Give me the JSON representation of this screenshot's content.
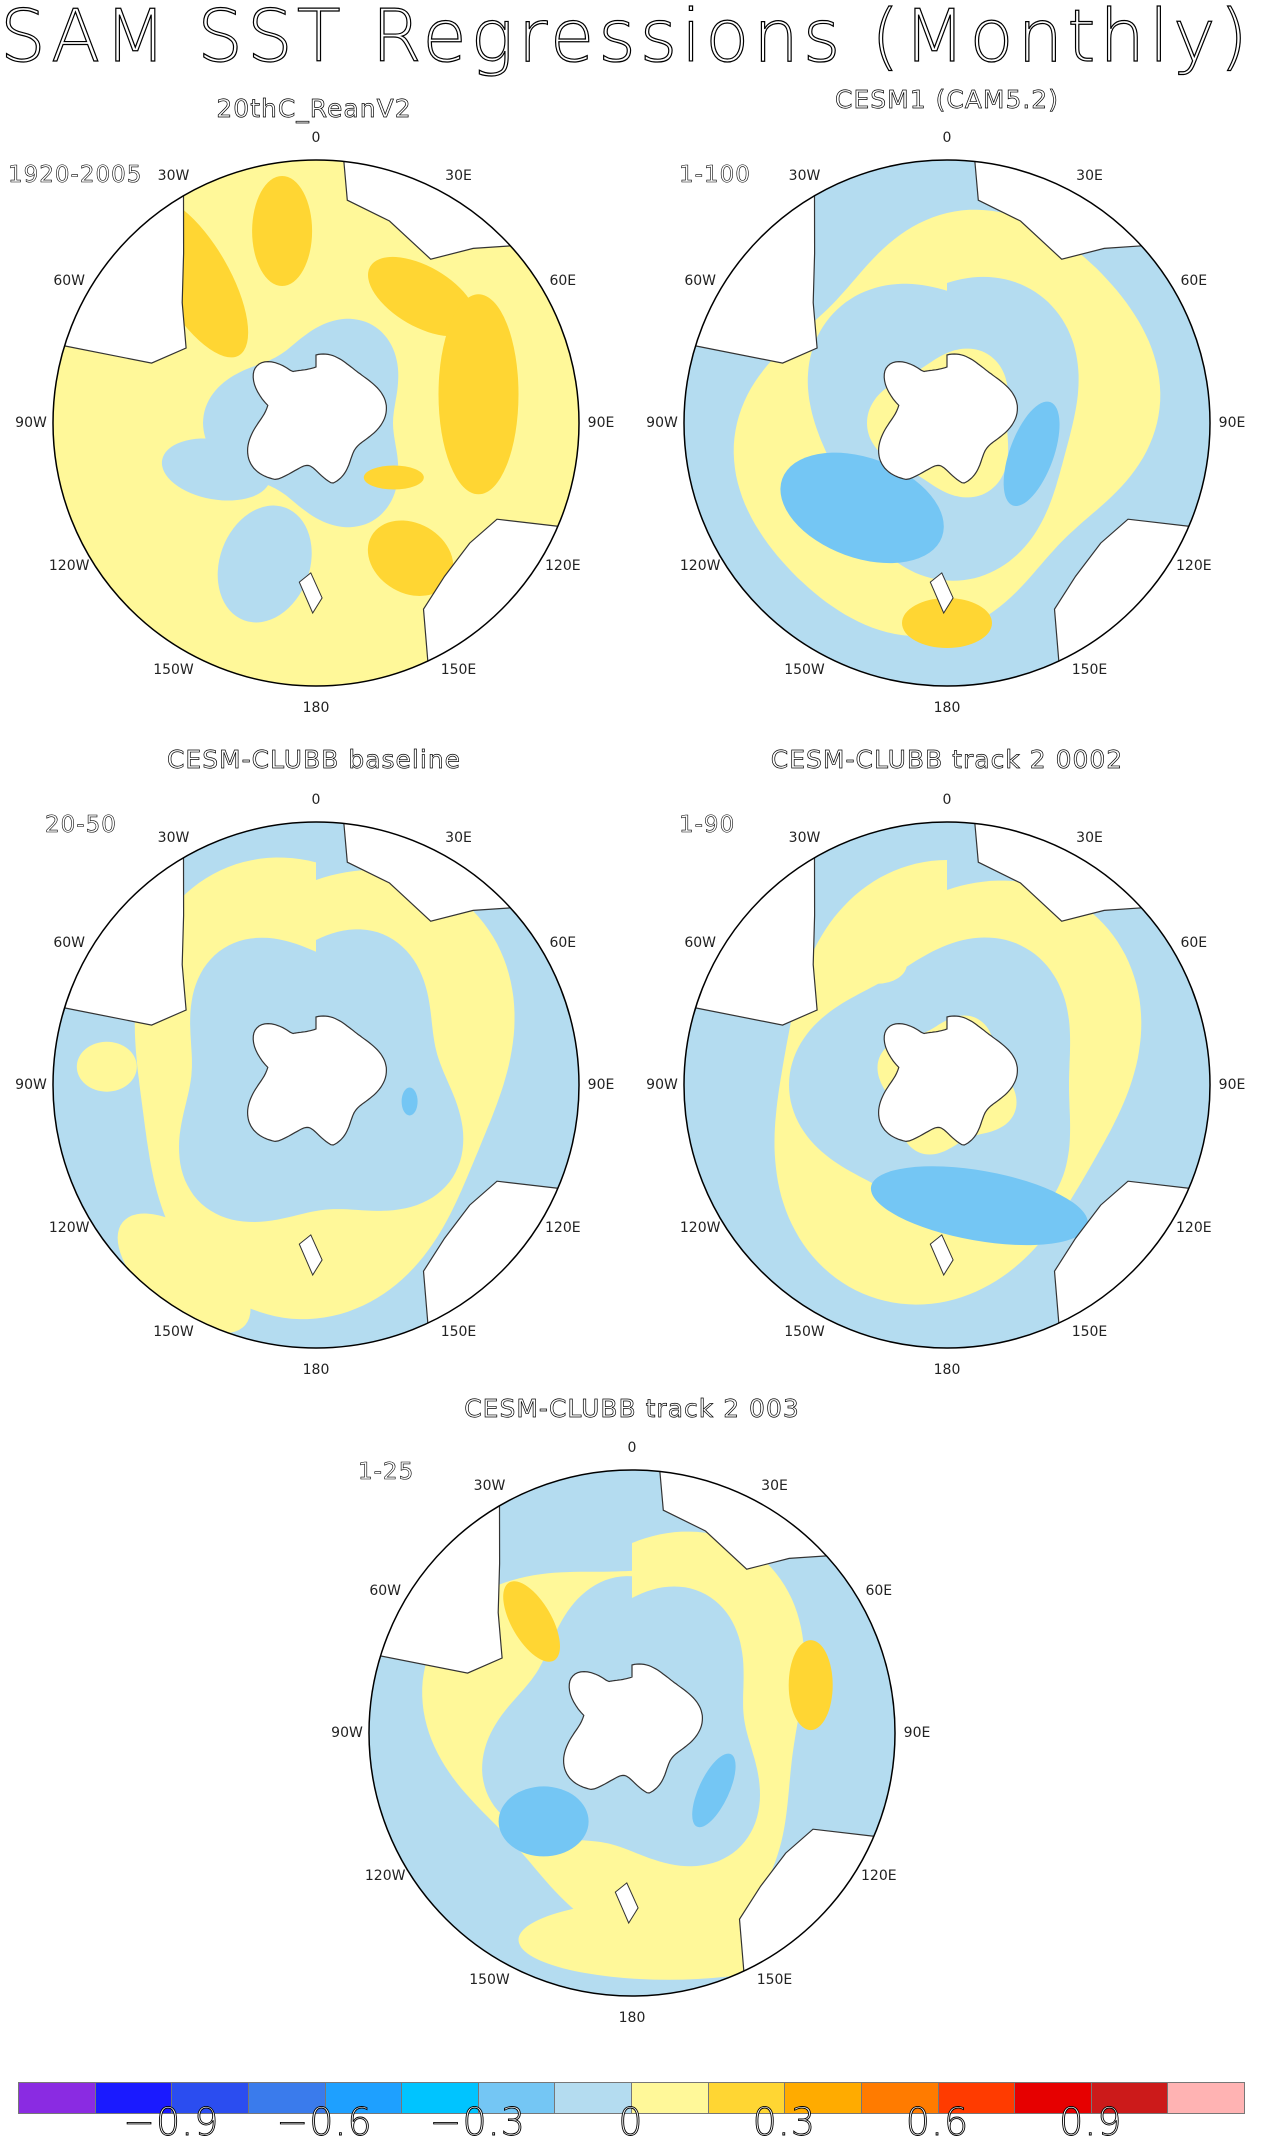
{
  "title": "SAM SST Regressions (Monthly)",
  "panels": [
    {
      "title": "20thC_ReanV2",
      "period": "1920-2005",
      "pattern": "rean"
    },
    {
      "title": "CESM1 (CAM5.2)",
      "period": "1-100",
      "pattern": "cesm1"
    },
    {
      "title": "CESM-CLUBB baseline",
      "period": "20-50",
      "pattern": "baseline"
    },
    {
      "title": "CESM-CLUBB track 2 0002",
      "period": "1-90",
      "pattern": "track2a"
    },
    {
      "title": "CESM-CLUBB track 2 003",
      "period": "1-25",
      "pattern": "track2b"
    }
  ],
  "lon_labels": [
    "0",
    "30E",
    "60E",
    "90E",
    "120E",
    "150E",
    "180",
    "150W",
    "120W",
    "90W",
    "60W",
    "30W"
  ],
  "colorbar": {
    "colors": [
      "#8a2be2",
      "#1a1aff",
      "#2b4df0",
      "#3a7bec",
      "#1ea0ff",
      "#00c4ff",
      "#74c6f4",
      "#b4dcf0",
      "#fff899",
      "#ffd633",
      "#ffab00",
      "#ff7b00",
      "#ff3b00",
      "#e60000",
      "#cc1a1a",
      "#ffb3b3"
    ],
    "labels": [
      "-0.9",
      "-0.6",
      "-0.3",
      "0",
      "0.3",
      "0.6",
      "0.9"
    ]
  },
  "palette": {
    "ocean_zero_pos": "#fff899",
    "ocean_zero_neg": "#b4dcf0",
    "neg_mid": "#74c6f4",
    "pos_mid": "#ffd633",
    "pos_high": "#ffab00",
    "pos_strong": "#ff7b00",
    "land": "#ffffff"
  }
}
